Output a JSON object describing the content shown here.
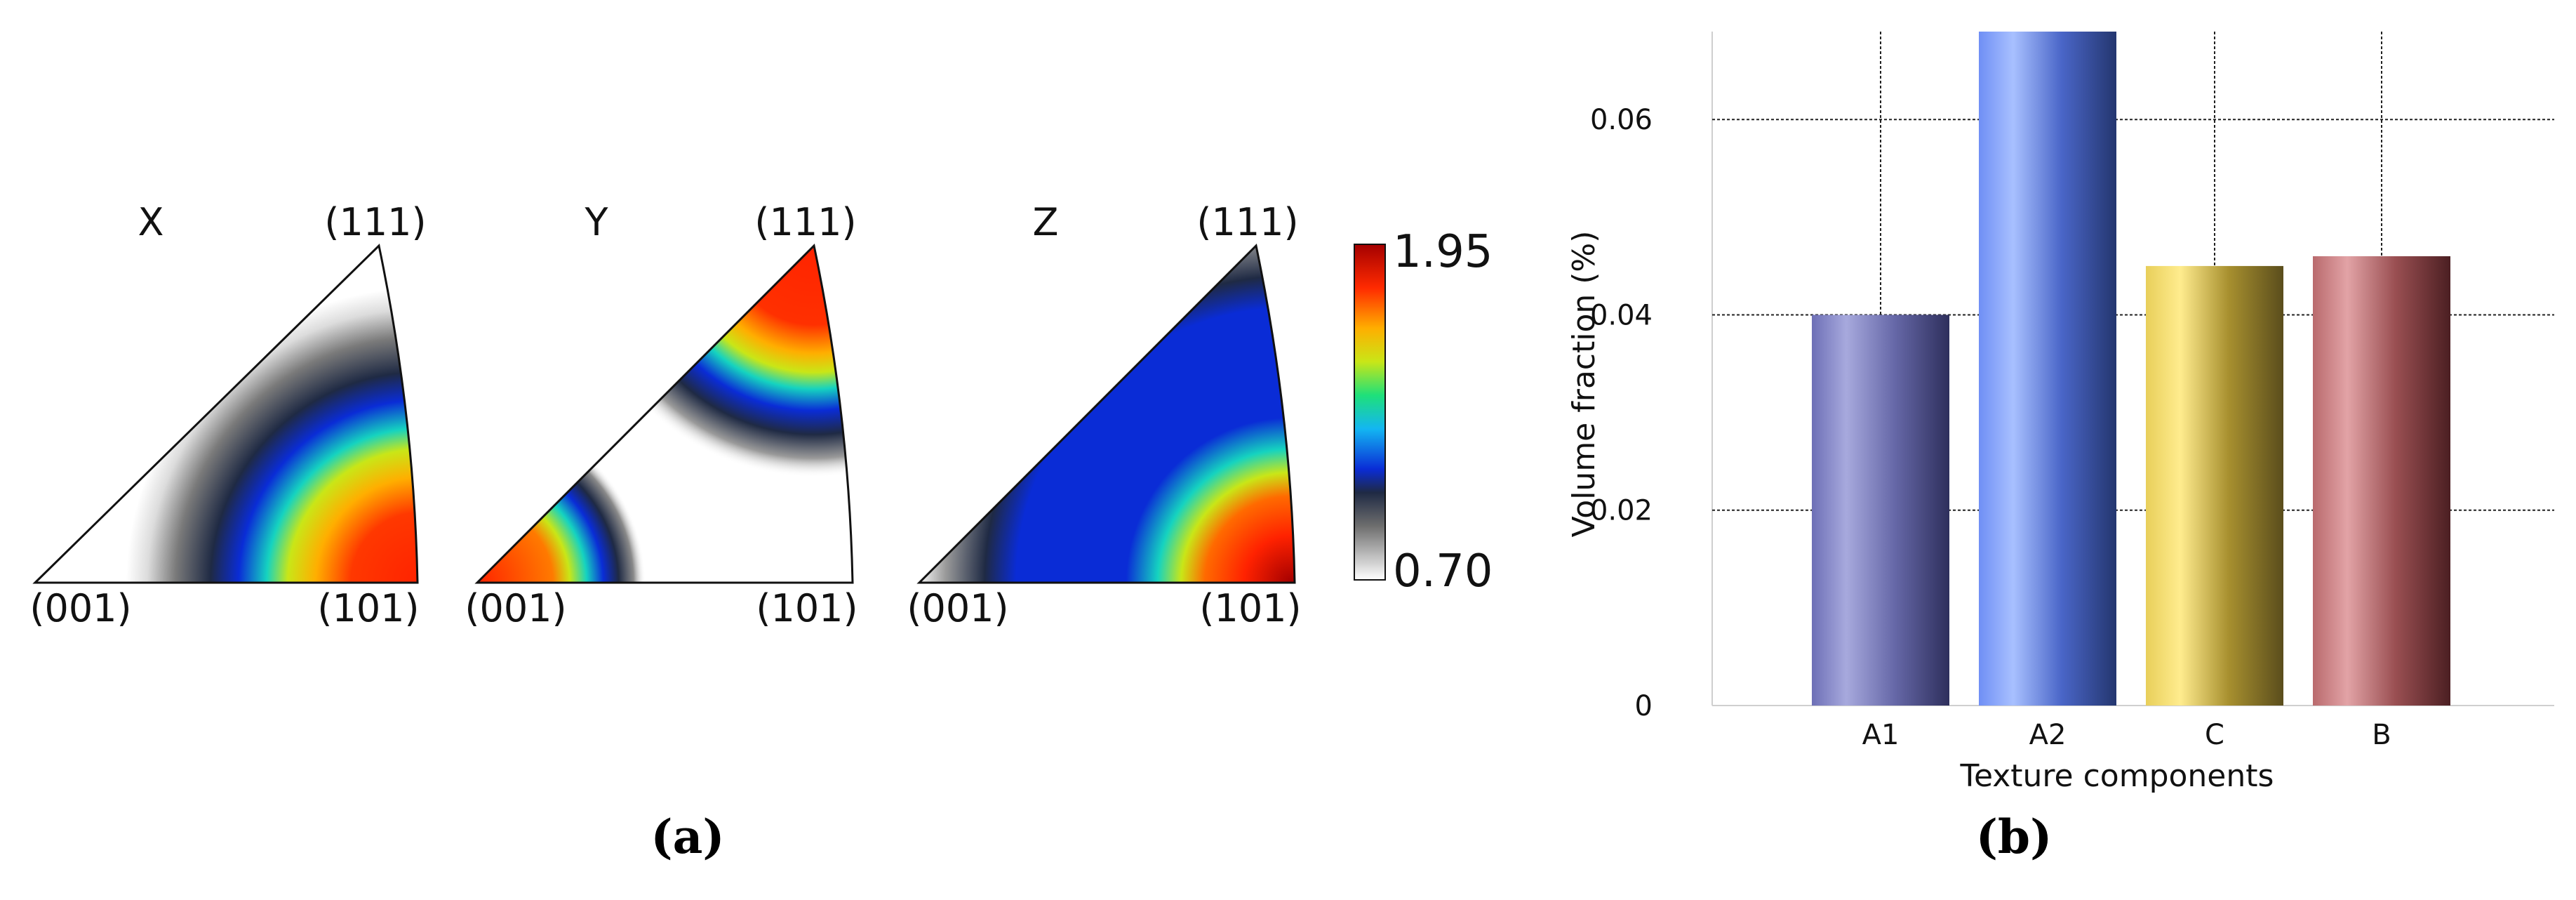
{
  "panel_a": {
    "label": "(a)",
    "triangles": [
      {
        "direction": "X",
        "corner_001": "(001)",
        "corner_101": "(101)",
        "corner_111": "(111)"
      },
      {
        "direction": "Y",
        "corner_001": "(001)",
        "corner_101": "(101)",
        "corner_111": "(111)"
      },
      {
        "direction": "Z",
        "corner_001": "(001)",
        "corner_101": "(101)",
        "corner_111": "(111)"
      }
    ],
    "colorbar": {
      "max_label": "1.95",
      "min_label": "0.70",
      "max": 1.95,
      "min": 0.7
    }
  },
  "panel_b": {
    "label": "(b)"
  },
  "chart_data": {
    "type": "bar",
    "categories": [
      "A1",
      "A2",
      "C",
      "B"
    ],
    "values": [
      0.04,
      0.069,
      0.045,
      0.046
    ],
    "xlabel": "Texture components",
    "ylabel": "Volume fraction (%)",
    "ylim": [
      0,
      0.069
    ],
    "yticks": [
      0,
      0.02,
      0.04,
      0.06
    ],
    "ytick_labels": [
      "0",
      "0.02",
      "0.04",
      "0.06"
    ],
    "grid": true,
    "bar_colors": [
      [
        "#a7a9dd",
        "#8486c4",
        "#2e2f5c"
      ],
      [
        "#a8c0ff",
        "#6f8ff5",
        "#24366f"
      ],
      [
        "#ffec8e",
        "#d6b94e",
        "#5a4d1c"
      ],
      [
        "#e2a3a6",
        "#c27a7d",
        "#4b1f22"
      ]
    ]
  }
}
